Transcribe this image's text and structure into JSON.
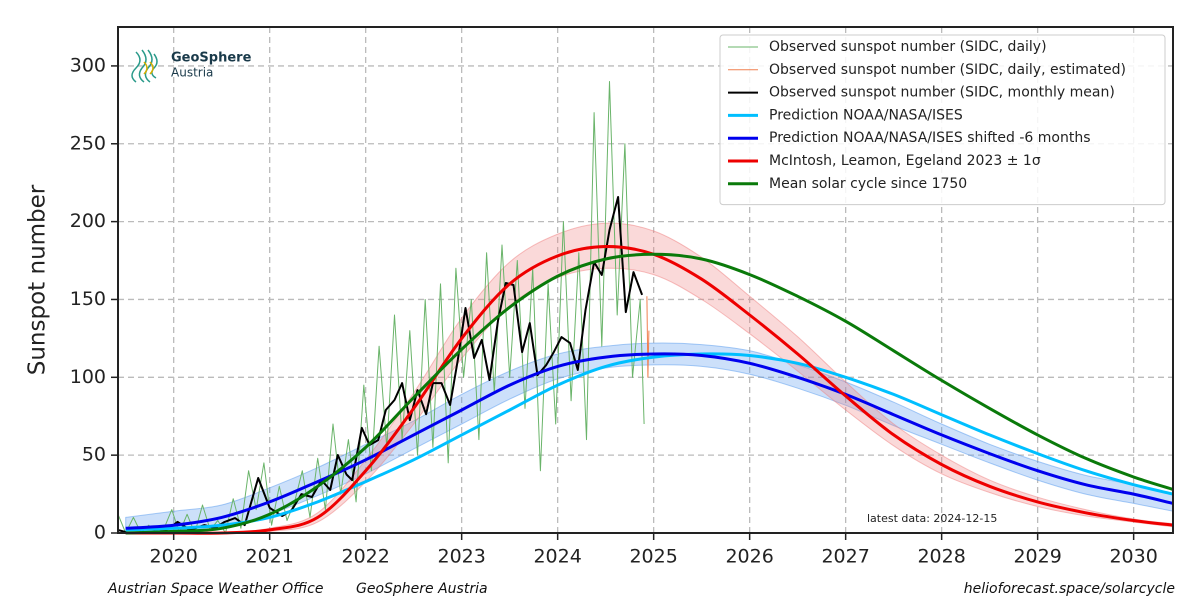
{
  "chart_data": {
    "type": "line",
    "ylabel": "Sunspot number",
    "xlim": [
      2019.42,
      2030.41
    ],
    "ylim": [
      0,
      325
    ],
    "xticks": [
      2020,
      2021,
      2022,
      2023,
      2024,
      2025,
      2026,
      2027,
      2028,
      2029,
      2030
    ],
    "yticks": [
      0,
      50,
      100,
      150,
      200,
      250,
      300
    ],
    "grid": true,
    "legend": "upper right",
    "annotation": "latest data: 2024-12-15",
    "logo": [
      "GeoSphere",
      "Austria"
    ],
    "footer_left": [
      "Austrian Space Weather Office",
      "GeoSphere Austria"
    ],
    "footer_right": "helioforecast.space/solarcycle",
    "series": [
      {
        "name": "Observed sunspot number (SIDC, daily)",
        "color": "#6ab46a",
        "width": 1,
        "x": [
          2019.42,
          2019.5,
          2019.58,
          2019.66,
          2019.74,
          2019.82,
          2019.9,
          2019.98,
          2020.06,
          2020.14,
          2020.22,
          2020.3,
          2020.38,
          2020.46,
          2020.54,
          2020.62,
          2020.7,
          2020.78,
          2020.86,
          2020.94,
          2021.02,
          2021.1,
          2021.18,
          2021.26,
          2021.34,
          2021.42,
          2021.5,
          2021.58,
          2021.66,
          2021.74,
          2021.82,
          2021.9,
          2021.98,
          2022.06,
          2022.14,
          2022.22,
          2022.3,
          2022.38,
          2022.46,
          2022.54,
          2022.62,
          2022.7,
          2022.78,
          2022.86,
          2022.94,
          2023.02,
          2023.1,
          2023.18,
          2023.26,
          2023.34,
          2023.42,
          2023.5,
          2023.58,
          2023.66,
          2023.74,
          2023.82,
          2023.9,
          2023.98,
          2024.06,
          2024.14,
          2024.22,
          2024.3,
          2024.38,
          2024.46,
          2024.54,
          2024.62,
          2024.7,
          2024.78,
          2024.86,
          2024.9
        ],
        "values": [
          12,
          0,
          10,
          0,
          5,
          0,
          3,
          15,
          0,
          12,
          0,
          18,
          2,
          8,
          0,
          22,
          3,
          40,
          15,
          45,
          5,
          30,
          8,
          20,
          40,
          10,
          48,
          15,
          70,
          25,
          60,
          20,
          95,
          40,
          120,
          55,
          140,
          60,
          130,
          50,
          150,
          55,
          160,
          45,
          170,
          100,
          150,
          60,
          180,
          90,
          185,
          100,
          175,
          80,
          170,
          40,
          160,
          70,
          200,
          85,
          180,
          60,
          270,
          120,
          290,
          140,
          250,
          100,
          150,
          70
        ]
      },
      {
        "name": "Observed sunspot number (SIDC, daily, estimated)",
        "color": "#f08050",
        "width": 1,
        "x": [
          2024.93,
          2024.94,
          2024.95
        ],
        "values": [
          152,
          100,
          130
        ]
      },
      {
        "name": "Observed sunspot number (SIDC, monthly mean)",
        "color": "#000000",
        "width": 2,
        "x": [
          2019.42,
          2019.54,
          2019.75,
          2019.91,
          2020.04,
          2020.17,
          2020.32,
          2020.43,
          2020.53,
          2020.64,
          2020.74,
          2020.88,
          2021.0,
          2021.13,
          2021.23,
          2021.33,
          2021.44,
          2021.54,
          2021.63,
          2021.71,
          2021.8,
          2021.86,
          2021.96,
          2022.04,
          2022.13,
          2022.21,
          2022.3,
          2022.38,
          2022.46,
          2022.54,
          2022.63,
          2022.7,
          2022.79,
          2022.88,
          2022.96,
          2023.04,
          2023.13,
          2023.21,
          2023.29,
          2023.38,
          2023.46,
          2023.54,
          2023.63,
          2023.71,
          2023.79,
          2023.88,
          2023.96,
          2024.04,
          2024.13,
          2024.21,
          2024.29,
          2024.38,
          2024.46,
          2024.54,
          2024.63,
          2024.71,
          2024.79,
          2024.88
        ],
        "values": [
          1.9,
          0,
          0.6,
          1.3,
          7.1,
          1.9,
          5.1,
          3.2,
          7.1,
          9.6,
          5.1,
          35.3,
          16.1,
          10.9,
          14.8,
          25,
          23.1,
          34,
          27.6,
          50.1,
          37.6,
          34,
          67.5,
          56.5,
          59.7,
          79,
          85.4,
          96.3,
          72.5,
          91.8,
          76.3,
          96.3,
          96.3,
          82.2,
          111.1,
          144.5,
          112.4,
          124,
          98.3,
          136.8,
          160.6,
          159.3,
          116.2,
          134.8,
          101.4,
          107.8,
          116.2,
          125.8,
          122,
          104.7,
          143.2,
          174,
          165.7,
          194.6,
          215.8,
          141.9,
          167.6,
          152.9
        ]
      },
      {
        "name": "Prediction NOAA/NASA/ISES",
        "color": "#00bfff",
        "width": 3,
        "smooth": true,
        "x": [
          2019.5,
          2020,
          2020.5,
          2021,
          2021.5,
          2022,
          2022.5,
          2023,
          2023.5,
          2024,
          2024.5,
          2025,
          2025.5,
          2026,
          2026.5,
          2027,
          2027.5,
          2028,
          2028.5,
          2029,
          2029.5,
          2030,
          2030.41
        ],
        "values": [
          2,
          3,
          5,
          10,
          20,
          33,
          47,
          63,
          79,
          95,
          107,
          113,
          115,
          114,
          109,
          100,
          89,
          76,
          63,
          51,
          40,
          31,
          25
        ]
      },
      {
        "name": "Prediction NOAA/NASA/ISES shifted -6 months",
        "color": "#0000ee",
        "width": 3,
        "smooth": true,
        "band_color": "#5599ee",
        "x": [
          2019.5,
          2020,
          2020.5,
          2021,
          2021.5,
          2022,
          2022.5,
          2023,
          2023.5,
          2024,
          2024.5,
          2025,
          2025.5,
          2026,
          2026.5,
          2027,
          2027.5,
          2028,
          2028.5,
          2029,
          2029.5,
          2030,
          2030.41
        ],
        "values": [
          3,
          5,
          10,
          20,
          33,
          47,
          63,
          79,
          95,
          107,
          113,
          115,
          114,
          109,
          100,
          89,
          76,
          63,
          51,
          40,
          31,
          25,
          19
        ],
        "lower": [
          0,
          0,
          3,
          12,
          24,
          38,
          54,
          70,
          86,
          99,
          106,
          108,
          107,
          102,
          93,
          82,
          69,
          57,
          45,
          34,
          25,
          19,
          14
        ],
        "upper": [
          10,
          14,
          18,
          29,
          42,
          57,
          72,
          89,
          104,
          115,
          120,
          122,
          121,
          117,
          108,
          97,
          84,
          70,
          57,
          46,
          37,
          31,
          25
        ]
      },
      {
        "name": "McIntosh, Leamon, Egeland 2023 ± 1σ",
        "color": "#ee0000",
        "width": 3,
        "smooth": true,
        "band_color": "#f08080",
        "x": [
          2019.5,
          2020,
          2020.5,
          2021,
          2021.5,
          2022,
          2022.5,
          2023,
          2023.5,
          2024,
          2024.5,
          2025,
          2025.5,
          2026,
          2026.5,
          2027,
          2027.5,
          2028,
          2028.5,
          2029,
          2029.5,
          2030,
          2030.41
        ],
        "values": [
          0,
          0,
          0,
          2,
          10,
          40,
          80,
          125,
          160,
          178,
          184,
          179,
          163,
          140,
          115,
          88,
          63,
          44,
          30,
          20,
          13,
          8,
          5
        ],
        "lower": [
          0,
          0,
          0,
          1,
          7,
          33,
          70,
          112,
          146,
          164,
          170,
          166,
          150,
          128,
          104,
          79,
          56,
          38,
          26,
          17,
          11,
          7,
          4
        ],
        "upper": [
          0,
          0,
          0,
          3,
          13,
          47,
          90,
          138,
          174,
          192,
          199,
          194,
          177,
          152,
          126,
          97,
          70,
          50,
          34,
          23,
          15,
          9,
          6
        ]
      },
      {
        "name": "Mean solar cycle since 1750",
        "color": "#0a7a0a",
        "width": 3,
        "smooth": true,
        "x": [
          2019.5,
          2020,
          2020.5,
          2021,
          2021.5,
          2022,
          2022.5,
          2023,
          2023.5,
          2024,
          2024.5,
          2025,
          2025.5,
          2026,
          2026.5,
          2027,
          2027.5,
          2028,
          2028.5,
          2029,
          2029.5,
          2030,
          2030.41
        ],
        "values": [
          0,
          1,
          3,
          12,
          30,
          55,
          87,
          118,
          145,
          165,
          176,
          179,
          176,
          166,
          152,
          136,
          117,
          98,
          80,
          63,
          48,
          36,
          28
        ]
      }
    ]
  }
}
